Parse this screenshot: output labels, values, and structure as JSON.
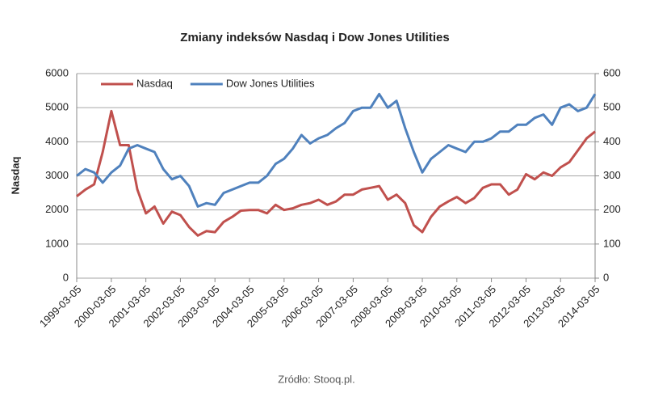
{
  "chart_data": {
    "type": "line",
    "title": "Zmiany indeksów Nasdaq  i Dow Jones Utilities",
    "y_label": "Nasdaq",
    "source": "Zródło: Stooq.pl.",
    "x": [
      "1999-03-05",
      "1999-06-05",
      "1999-09-05",
      "1999-12-05",
      "2000-03-05",
      "2000-06-05",
      "2000-09-05",
      "2000-12-05",
      "2001-03-05",
      "2001-06-05",
      "2001-09-05",
      "2001-12-05",
      "2002-03-05",
      "2002-06-05",
      "2002-09-05",
      "2002-12-05",
      "2003-03-05",
      "2003-06-05",
      "2003-09-05",
      "2003-12-05",
      "2004-03-05",
      "2004-06-05",
      "2004-09-05",
      "2004-12-05",
      "2005-03-05",
      "2005-06-05",
      "2005-09-05",
      "2005-12-05",
      "2006-03-05",
      "2006-06-05",
      "2006-09-05",
      "2006-12-05",
      "2007-03-05",
      "2007-06-05",
      "2007-09-05",
      "2007-12-05",
      "2008-03-05",
      "2008-06-05",
      "2008-09-05",
      "2008-12-05",
      "2009-03-05",
      "2009-06-05",
      "2009-09-05",
      "2009-12-05",
      "2010-03-05",
      "2010-06-05",
      "2010-09-05",
      "2010-12-05",
      "2011-03-05",
      "2011-06-05",
      "2011-09-05",
      "2011-12-05",
      "2012-03-05",
      "2012-06-05",
      "2012-09-05",
      "2012-12-05",
      "2013-03-05",
      "2013-06-05",
      "2013-09-05",
      "2013-12-05",
      "2014-03-05"
    ],
    "series": [
      {
        "name": "Nasdaq",
        "color": "#c0504d",
        "axis": "y",
        "values": [
          2400,
          2600,
          2750,
          3700,
          4900,
          3900,
          3900,
          2600,
          1900,
          2100,
          1600,
          1950,
          1850,
          1500,
          1250,
          1380,
          1350,
          1650,
          1800,
          1980,
          2000,
          2000,
          1900,
          2150,
          2000,
          2050,
          2150,
          2200,
          2300,
          2150,
          2250,
          2450,
          2450,
          2600,
          2650,
          2700,
          2300,
          2450,
          2200,
          1550,
          1350,
          1800,
          2100,
          2250,
          2380,
          2200,
          2350,
          2650,
          2750,
          2750,
          2450,
          2600,
          3050,
          2900,
          3100,
          3000,
          3250,
          3400,
          3750,
          4100,
          4300
        ]
      },
      {
        "name": "Dow Jones Utilities",
        "color": "#4f81bd",
        "axis": "y2",
        "values": [
          300,
          320,
          310,
          280,
          310,
          330,
          380,
          390,
          380,
          370,
          320,
          290,
          300,
          270,
          210,
          220,
          215,
          250,
          260,
          270,
          280,
          280,
          300,
          335,
          350,
          380,
          420,
          395,
          410,
          420,
          440,
          455,
          490,
          500,
          500,
          540,
          500,
          520,
          440,
          370,
          310,
          350,
          370,
          390,
          380,
          370,
          400,
          400,
          410,
          430,
          430,
          450,
          450,
          470,
          480,
          450,
          500,
          510,
          490,
          500,
          540
        ]
      }
    ],
    "xlim": [
      "1999-03-05",
      "2014-03-05"
    ],
    "xticks": [
      "1999-03-05",
      "2000-03-05",
      "2001-03-05",
      "2002-03-05",
      "2003-03-05",
      "2004-03-05",
      "2005-03-05",
      "2006-03-05",
      "2007-03-05",
      "2008-03-05",
      "2009-03-05",
      "2010-03-05",
      "2011-03-05",
      "2012-03-05",
      "2013-03-05",
      "2014-03-05"
    ],
    "ylim": [
      0,
      6000
    ],
    "yticks": [
      0,
      1000,
      2000,
      3000,
      4000,
      5000,
      6000
    ],
    "y2lim": [
      0,
      600
    ],
    "y2ticks": [
      0,
      100,
      200,
      300,
      400,
      500,
      600
    ],
    "grid": true,
    "legend": "top-left"
  }
}
